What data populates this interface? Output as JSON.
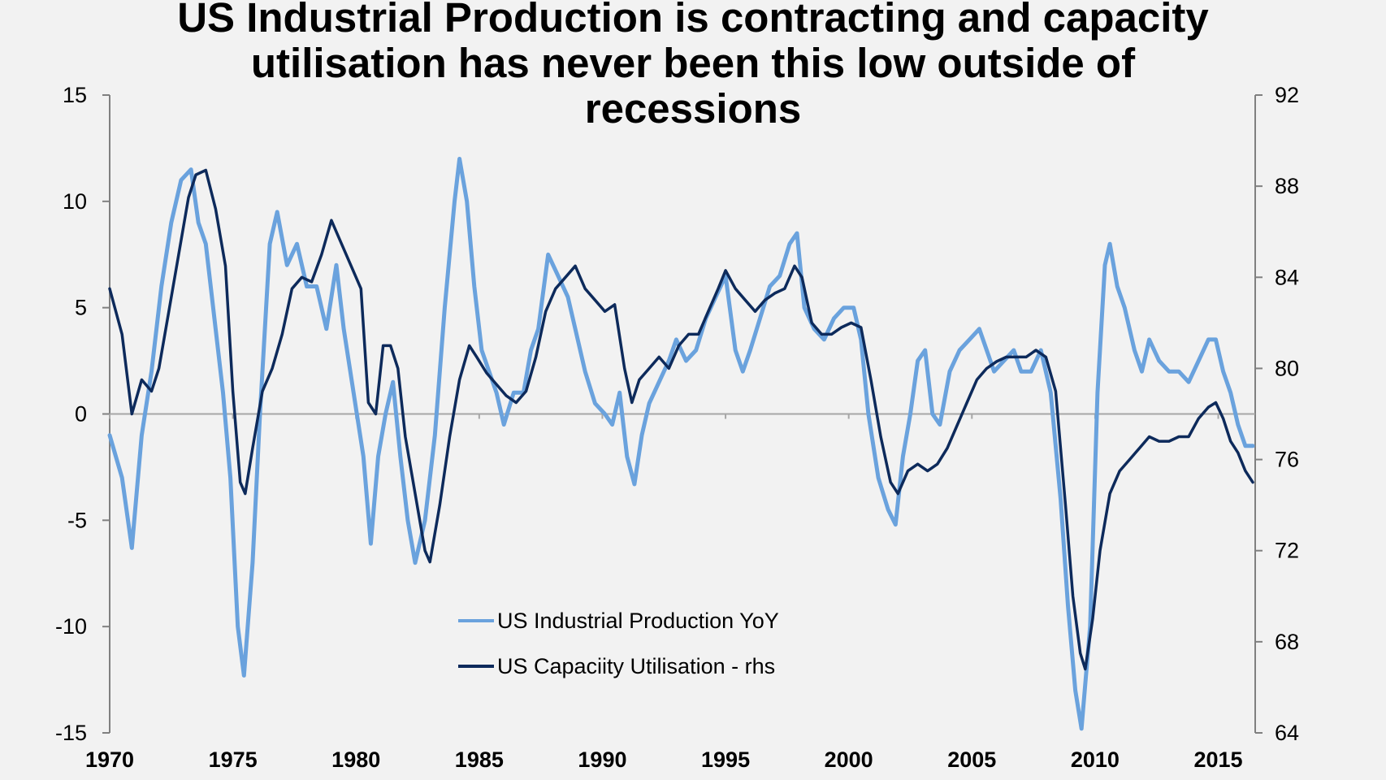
{
  "colors": {
    "ip": "#6aa2dd",
    "cu": "#0d2a5b",
    "axis": "#808080",
    "zero": "#a6a6a6",
    "background": "#f2f2f2"
  },
  "chart_data": {
    "type": "line",
    "title_lines": [
      "US Industrial Production is contracting and capacity",
      "utilisation has never been this low outside of",
      "recessions"
    ],
    "xlabel": "",
    "x_ticks": [
      "1970",
      "1975",
      "1980",
      "1985",
      "1990",
      "1995",
      "2000",
      "2005",
      "2010",
      "2015"
    ],
    "xlim": [
      1970,
      2016.5
    ],
    "y_left": {
      "ticks": [
        "15",
        "10",
        "5",
        "0",
        "-5",
        "-10",
        "-15"
      ],
      "ylim": [
        -15,
        15
      ]
    },
    "y_right": {
      "ticks": [
        "92",
        "88",
        "84",
        "80",
        "76",
        "72",
        "68",
        "64"
      ],
      "ylim": [
        64,
        92
      ]
    },
    "legend": {
      "placement": "bottom-center",
      "entries": [
        "US Industrial Production YoY",
        "US Capaciity Utilisation - rhs"
      ]
    },
    "series": [
      {
        "name": "US Industrial Production YoY",
        "axis": "left",
        "points": [
          [
            1970.0,
            -1
          ],
          [
            1970.5,
            -3
          ],
          [
            1970.9,
            -6.3
          ],
          [
            1971.3,
            -1
          ],
          [
            1971.7,
            2
          ],
          [
            1972.1,
            6
          ],
          [
            1972.5,
            9
          ],
          [
            1972.9,
            11
          ],
          [
            1973.3,
            11.5
          ],
          [
            1973.6,
            9
          ],
          [
            1973.9,
            8
          ],
          [
            1974.3,
            4
          ],
          [
            1974.6,
            1
          ],
          [
            1974.9,
            -3
          ],
          [
            1975.2,
            -10
          ],
          [
            1975.45,
            -12.3
          ],
          [
            1975.8,
            -7
          ],
          [
            1976.1,
            0
          ],
          [
            1976.5,
            8
          ],
          [
            1976.8,
            9.5
          ],
          [
            1977.2,
            7
          ],
          [
            1977.6,
            8
          ],
          [
            1978.0,
            6
          ],
          [
            1978.4,
            6
          ],
          [
            1978.8,
            4
          ],
          [
            1979.2,
            7
          ],
          [
            1979.5,
            4
          ],
          [
            1979.9,
            1
          ],
          [
            1980.3,
            -2
          ],
          [
            1980.6,
            -6.1
          ],
          [
            1980.9,
            -2
          ],
          [
            1981.2,
            0
          ],
          [
            1981.5,
            1.5
          ],
          [
            1981.8,
            -2
          ],
          [
            1982.1,
            -5
          ],
          [
            1982.4,
            -7
          ],
          [
            1982.8,
            -5
          ],
          [
            1983.2,
            -1
          ],
          [
            1983.6,
            5
          ],
          [
            1984.0,
            10
          ],
          [
            1984.2,
            12
          ],
          [
            1984.5,
            10
          ],
          [
            1984.8,
            6
          ],
          [
            1985.1,
            3
          ],
          [
            1985.4,
            2
          ],
          [
            1985.7,
            1
          ],
          [
            1986.0,
            -0.5
          ],
          [
            1986.4,
            1
          ],
          [
            1986.8,
            1
          ],
          [
            1987.1,
            3
          ],
          [
            1987.4,
            4
          ],
          [
            1987.8,
            7.5
          ],
          [
            1988.2,
            6.5
          ],
          [
            1988.6,
            5.5
          ],
          [
            1988.9,
            4
          ],
          [
            1989.3,
            2
          ],
          [
            1989.7,
            0.5
          ],
          [
            1990.1,
            0
          ],
          [
            1990.4,
            -0.5
          ],
          [
            1990.7,
            1
          ],
          [
            1991.0,
            -2
          ],
          [
            1991.3,
            -3.3
          ],
          [
            1991.6,
            -1
          ],
          [
            1991.9,
            0.5
          ],
          [
            1992.3,
            1.5
          ],
          [
            1992.7,
            2.5
          ],
          [
            1993.0,
            3.5
          ],
          [
            1993.4,
            2.5
          ],
          [
            1993.8,
            3
          ],
          [
            1994.2,
            4.5
          ],
          [
            1994.6,
            5.5
          ],
          [
            1995.0,
            6.5
          ],
          [
            1995.4,
            3
          ],
          [
            1995.7,
            2
          ],
          [
            1996.0,
            3
          ],
          [
            1996.4,
            4.5
          ],
          [
            1996.8,
            6
          ],
          [
            1997.2,
            6.5
          ],
          [
            1997.6,
            8
          ],
          [
            1997.9,
            8.5
          ],
          [
            1998.2,
            5
          ],
          [
            1998.6,
            4
          ],
          [
            1999.0,
            3.5
          ],
          [
            1999.4,
            4.5
          ],
          [
            1999.8,
            5
          ],
          [
            2000.2,
            5
          ],
          [
            2000.5,
            3.5
          ],
          [
            2000.8,
            0
          ],
          [
            2001.2,
            -3
          ],
          [
            2001.6,
            -4.5
          ],
          [
            2001.9,
            -5.2
          ],
          [
            2002.2,
            -2
          ],
          [
            2002.5,
            0
          ],
          [
            2002.8,
            2.5
          ],
          [
            2003.1,
            3
          ],
          [
            2003.4,
            0
          ],
          [
            2003.7,
            -0.5
          ],
          [
            2004.1,
            2
          ],
          [
            2004.5,
            3
          ],
          [
            2004.9,
            3.5
          ],
          [
            2005.3,
            4
          ],
          [
            2005.6,
            3
          ],
          [
            2005.9,
            2
          ],
          [
            2006.3,
            2.5
          ],
          [
            2006.7,
            3
          ],
          [
            2007.0,
            2
          ],
          [
            2007.4,
            2
          ],
          [
            2007.8,
            3
          ],
          [
            2008.2,
            1
          ],
          [
            2008.6,
            -4
          ],
          [
            2008.9,
            -9
          ],
          [
            2009.2,
            -13
          ],
          [
            2009.45,
            -14.8
          ],
          [
            2009.8,
            -10
          ],
          [
            2010.1,
            1
          ],
          [
            2010.4,
            7
          ],
          [
            2010.6,
            8
          ],
          [
            2010.9,
            6
          ],
          [
            2011.2,
            5
          ],
          [
            2011.6,
            3
          ],
          [
            2011.9,
            2
          ],
          [
            2012.2,
            3.5
          ],
          [
            2012.6,
            2.5
          ],
          [
            2013.0,
            2
          ],
          [
            2013.4,
            2
          ],
          [
            2013.8,
            1.5
          ],
          [
            2014.2,
            2.5
          ],
          [
            2014.6,
            3.5
          ],
          [
            2014.9,
            3.5
          ],
          [
            2015.2,
            2
          ],
          [
            2015.5,
            1
          ],
          [
            2015.8,
            -0.5
          ],
          [
            2016.1,
            -1.5
          ],
          [
            2016.4,
            -1.5
          ]
        ]
      },
      {
        "name": "US Capaciity Utilisation - rhs",
        "axis": "right",
        "points": [
          [
            1970.0,
            83.5
          ],
          [
            1970.5,
            81.5
          ],
          [
            1970.9,
            78.0
          ],
          [
            1971.3,
            79.5
          ],
          [
            1971.7,
            79.0
          ],
          [
            1972.0,
            80.0
          ],
          [
            1972.4,
            82.5
          ],
          [
            1972.8,
            85.0
          ],
          [
            1973.2,
            87.5
          ],
          [
            1973.5,
            88.5
          ],
          [
            1973.9,
            88.7
          ],
          [
            1974.3,
            87.0
          ],
          [
            1974.7,
            84.5
          ],
          [
            1975.0,
            79.0
          ],
          [
            1975.3,
            75.0
          ],
          [
            1975.5,
            74.5
          ],
          [
            1975.8,
            76.5
          ],
          [
            1976.2,
            79.0
          ],
          [
            1976.6,
            80.0
          ],
          [
            1977.0,
            81.5
          ],
          [
            1977.4,
            83.5
          ],
          [
            1977.8,
            84.0
          ],
          [
            1978.2,
            83.8
          ],
          [
            1978.6,
            85.0
          ],
          [
            1979.0,
            86.5
          ],
          [
            1979.4,
            85.5
          ],
          [
            1979.8,
            84.5
          ],
          [
            1980.2,
            83.5
          ],
          [
            1980.5,
            78.5
          ],
          [
            1980.8,
            78.0
          ],
          [
            1981.1,
            81.0
          ],
          [
            1981.4,
            81.0
          ],
          [
            1981.7,
            80.0
          ],
          [
            1982.0,
            77.0
          ],
          [
            1982.4,
            74.5
          ],
          [
            1982.8,
            72.0
          ],
          [
            1983.0,
            71.5
          ],
          [
            1983.4,
            74.0
          ],
          [
            1983.8,
            77.0
          ],
          [
            1984.2,
            79.5
          ],
          [
            1984.6,
            81.0
          ],
          [
            1984.9,
            80.5
          ],
          [
            1985.3,
            79.8
          ],
          [
            1985.7,
            79.3
          ],
          [
            1986.1,
            78.8
          ],
          [
            1986.5,
            78.5
          ],
          [
            1986.9,
            79.0
          ],
          [
            1987.3,
            80.5
          ],
          [
            1987.7,
            82.5
          ],
          [
            1988.1,
            83.5
          ],
          [
            1988.5,
            84.0
          ],
          [
            1988.9,
            84.5
          ],
          [
            1989.3,
            83.5
          ],
          [
            1989.7,
            83.0
          ],
          [
            1990.1,
            82.5
          ],
          [
            1990.5,
            82.8
          ],
          [
            1990.9,
            80.0
          ],
          [
            1991.2,
            78.5
          ],
          [
            1991.5,
            79.5
          ],
          [
            1991.9,
            80.0
          ],
          [
            1992.3,
            80.5
          ],
          [
            1992.7,
            80.0
          ],
          [
            1993.1,
            81.0
          ],
          [
            1993.5,
            81.5
          ],
          [
            1993.9,
            81.5
          ],
          [
            1994.3,
            82.5
          ],
          [
            1994.7,
            83.5
          ],
          [
            1995.0,
            84.3
          ],
          [
            1995.4,
            83.5
          ],
          [
            1995.8,
            83.0
          ],
          [
            1996.2,
            82.5
          ],
          [
            1996.6,
            83.0
          ],
          [
            1997.0,
            83.3
          ],
          [
            1997.4,
            83.5
          ],
          [
            1997.8,
            84.5
          ],
          [
            1998.1,
            84.0
          ],
          [
            1998.5,
            82.0
          ],
          [
            1998.9,
            81.5
          ],
          [
            1999.3,
            81.5
          ],
          [
            1999.7,
            81.8
          ],
          [
            2000.1,
            82.0
          ],
          [
            2000.5,
            81.8
          ],
          [
            2000.9,
            79.5
          ],
          [
            2001.3,
            77.0
          ],
          [
            2001.7,
            75.0
          ],
          [
            2002.0,
            74.5
          ],
          [
            2002.4,
            75.5
          ],
          [
            2002.8,
            75.8
          ],
          [
            2003.2,
            75.5
          ],
          [
            2003.6,
            75.8
          ],
          [
            2004.0,
            76.5
          ],
          [
            2004.4,
            77.5
          ],
          [
            2004.8,
            78.5
          ],
          [
            2005.2,
            79.5
          ],
          [
            2005.6,
            80.0
          ],
          [
            2006.0,
            80.3
          ],
          [
            2006.4,
            80.5
          ],
          [
            2006.8,
            80.5
          ],
          [
            2007.2,
            80.5
          ],
          [
            2007.6,
            80.8
          ],
          [
            2008.0,
            80.5
          ],
          [
            2008.4,
            79.0
          ],
          [
            2008.8,
            74.0
          ],
          [
            2009.1,
            70.0
          ],
          [
            2009.4,
            67.5
          ],
          [
            2009.6,
            66.8
          ],
          [
            2009.9,
            69.0
          ],
          [
            2010.2,
            72.0
          ],
          [
            2010.6,
            74.5
          ],
          [
            2011.0,
            75.5
          ],
          [
            2011.4,
            76.0
          ],
          [
            2011.8,
            76.5
          ],
          [
            2012.2,
            77.0
          ],
          [
            2012.6,
            76.8
          ],
          [
            2013.0,
            76.8
          ],
          [
            2013.4,
            77.0
          ],
          [
            2013.8,
            77.0
          ],
          [
            2014.2,
            77.8
          ],
          [
            2014.6,
            78.3
          ],
          [
            2014.9,
            78.5
          ],
          [
            2015.2,
            77.8
          ],
          [
            2015.5,
            76.8
          ],
          [
            2015.8,
            76.3
          ],
          [
            2016.1,
            75.5
          ],
          [
            2016.4,
            75.0
          ]
        ]
      }
    ]
  }
}
